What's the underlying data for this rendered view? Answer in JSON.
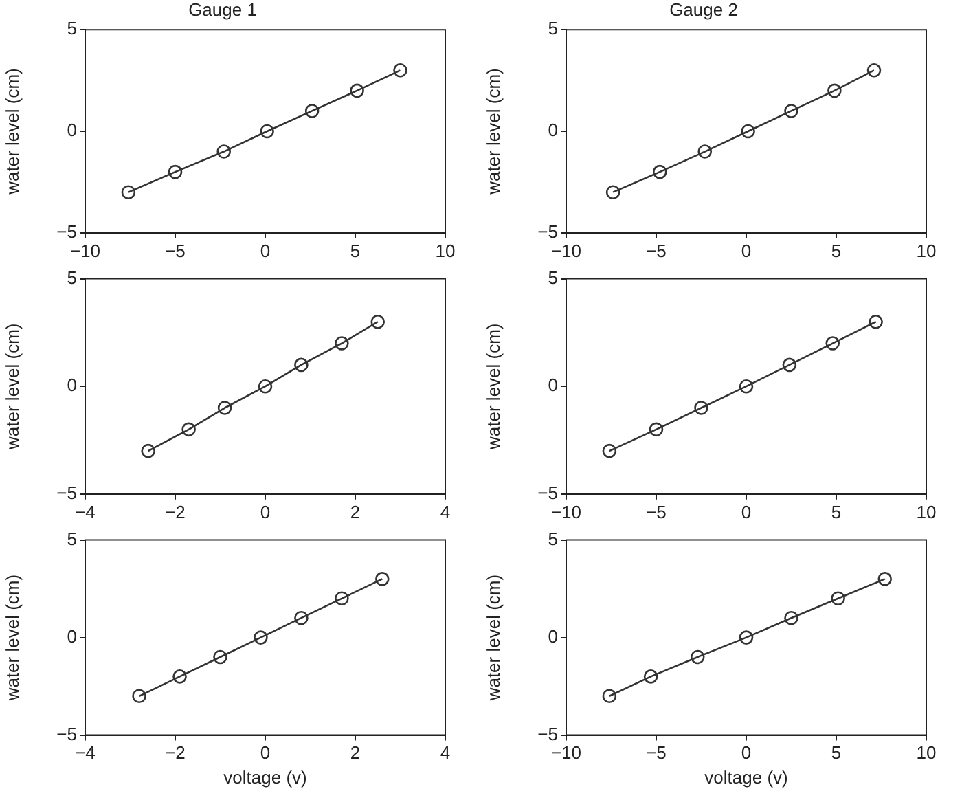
{
  "chart_data": [
    {
      "type": "line",
      "title": "Gauge 1",
      "ylabel": "water level (cm)",
      "marker": "circle",
      "line_style": "solid",
      "grid": false,
      "legend": false,
      "xlim": [
        -10,
        10
      ],
      "xticks": [
        -10,
        -5,
        0,
        5,
        10
      ],
      "ylim": [
        -5,
        5
      ],
      "yticks": [
        -5,
        0,
        5
      ],
      "series": [
        {
          "color": "#333333",
          "x": [
            -7.6,
            -5,
            -2.3,
            0.1,
            2.6,
            5.1,
            7.5
          ],
          "values": [
            -3,
            -2,
            -1,
            0,
            1,
            2,
            3
          ]
        }
      ]
    },
    {
      "type": "line",
      "title": "Gauge 2",
      "ylabel": "water level (cm)",
      "marker": "circle",
      "line_style": "solid",
      "grid": false,
      "legend": false,
      "xlim": [
        -10,
        10
      ],
      "xticks": [
        -10,
        -5,
        0,
        5,
        10
      ],
      "ylim": [
        -5,
        5
      ],
      "yticks": [
        -5,
        0,
        5
      ],
      "series": [
        {
          "color": "#333333",
          "x": [
            -7.4,
            -4.8,
            -2.3,
            0.1,
            2.5,
            4.9,
            7.1
          ],
          "values": [
            -3,
            -2,
            -1,
            0,
            1,
            2,
            3
          ]
        }
      ]
    },
    {
      "type": "line",
      "ylabel": "water level (cm)",
      "marker": "circle",
      "line_style": "solid",
      "grid": false,
      "legend": false,
      "xlim": [
        -4,
        4
      ],
      "xticks": [
        -4,
        -2,
        0,
        2,
        4
      ],
      "ylim": [
        -5,
        5
      ],
      "yticks": [
        -5,
        0,
        5
      ],
      "series": [
        {
          "color": "#333333",
          "x": [
            -2.6,
            -1.7,
            -0.9,
            0,
            0.8,
            1.7,
            2.5
          ],
          "values": [
            -3,
            -2,
            -1,
            0,
            1,
            2,
            3
          ]
        }
      ]
    },
    {
      "type": "line",
      "ylabel": "water level (cm)",
      "marker": "circle",
      "line_style": "solid",
      "grid": false,
      "legend": false,
      "xlim": [
        -10,
        10
      ],
      "xticks": [
        -10,
        -5,
        0,
        5,
        10
      ],
      "ylim": [
        -5,
        5
      ],
      "yticks": [
        -5,
        0,
        5
      ],
      "series": [
        {
          "color": "#333333",
          "x": [
            -7.6,
            -5,
            -2.5,
            0,
            2.4,
            4.8,
            7.2
          ],
          "values": [
            -3,
            -2,
            -1,
            0,
            1,
            2,
            3
          ]
        }
      ]
    },
    {
      "type": "line",
      "xlabel": "voltage (v)",
      "ylabel": "water level (cm)",
      "marker": "circle",
      "line_style": "solid",
      "grid": false,
      "legend": false,
      "xlim": [
        -4,
        4
      ],
      "xticks": [
        -4,
        -2,
        0,
        2,
        4
      ],
      "ylim": [
        -5,
        5
      ],
      "yticks": [
        -5,
        0,
        5
      ],
      "series": [
        {
          "color": "#333333",
          "x": [
            -2.8,
            -1.9,
            -1,
            -0.1,
            0.8,
            1.7,
            2.6
          ],
          "values": [
            -3,
            -2,
            -1,
            0,
            1,
            2,
            3
          ]
        }
      ]
    },
    {
      "type": "line",
      "xlabel": "voltage (v)",
      "ylabel": "water level (cm)",
      "marker": "circle",
      "line_style": "solid",
      "grid": false,
      "legend": false,
      "xlim": [
        -10,
        10
      ],
      "xticks": [
        -10,
        -5,
        0,
        5,
        10
      ],
      "ylim": [
        -5,
        5
      ],
      "yticks": [
        -5,
        0,
        5
      ],
      "series": [
        {
          "color": "#333333",
          "x": [
            -7.6,
            -5.3,
            -2.7,
            0,
            2.5,
            5.1,
            7.7
          ],
          "values": [
            -3,
            -2,
            -1,
            0,
            1,
            2,
            3
          ]
        }
      ]
    }
  ]
}
